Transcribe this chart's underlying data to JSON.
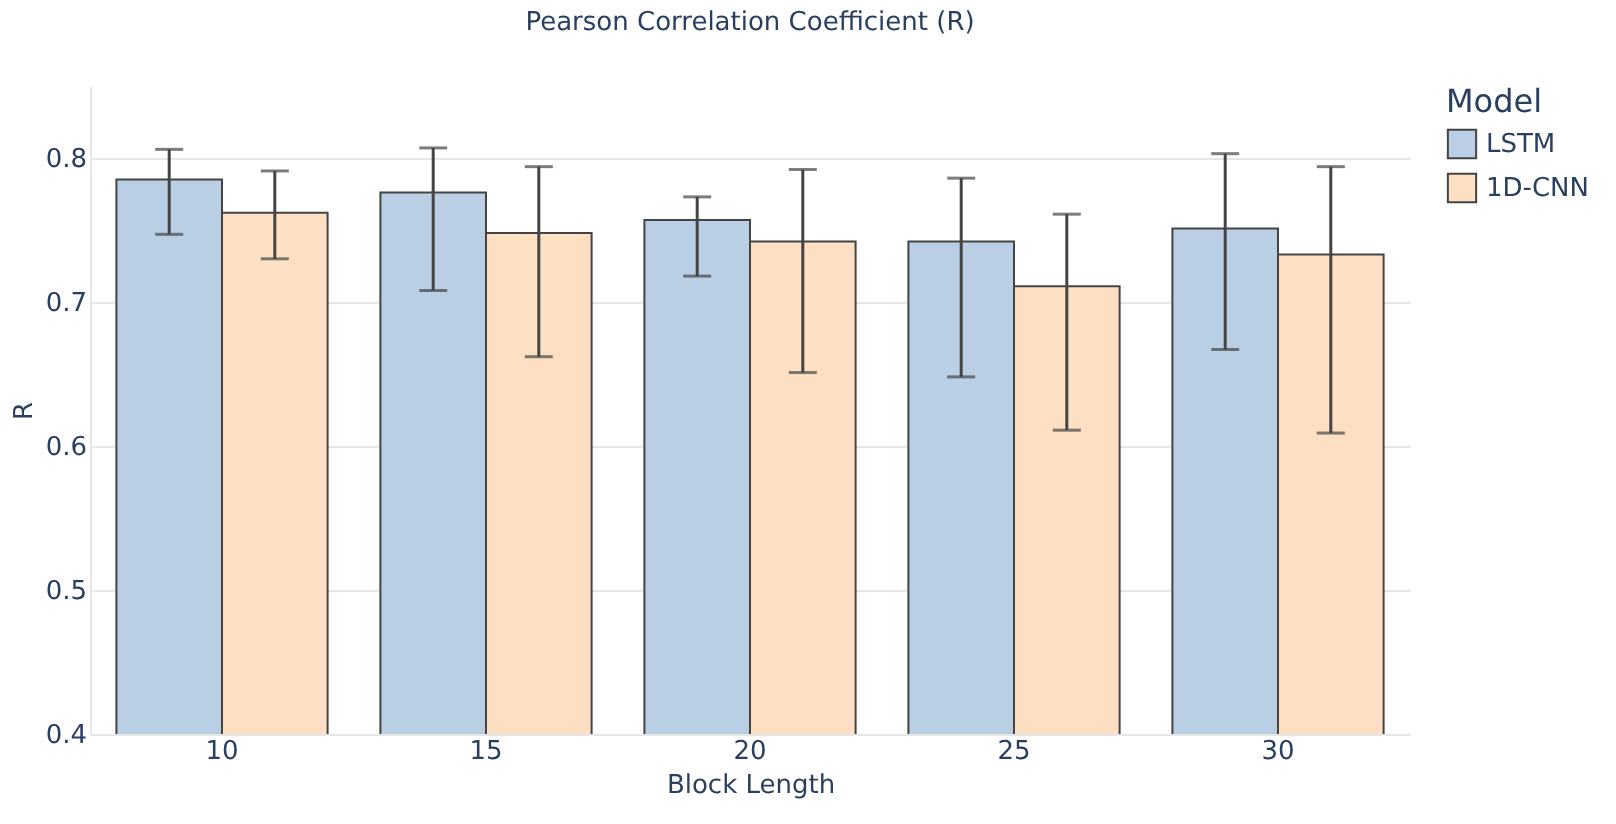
{
  "chart_data": {
    "type": "bar",
    "title": "Pearson Correlation Coefficient (R)",
    "xlabel": "Block Length",
    "ylabel": "R",
    "legend_title": "Model",
    "categories": [
      "10",
      "15",
      "20",
      "25",
      "30"
    ],
    "series": [
      {
        "name": "LSTM",
        "color": "#bacee4",
        "values": [
          0.785,
          0.776,
          0.757,
          0.742,
          0.751
        ],
        "errors": [
          [
            0.747,
            0.806
          ],
          [
            0.708,
            0.807
          ],
          [
            0.718,
            0.773
          ],
          [
            0.648,
            0.786
          ],
          [
            0.667,
            0.803
          ]
        ]
      },
      {
        "name": "1D-CNN",
        "color": "#fddfc3",
        "values": [
          0.762,
          0.748,
          0.742,
          0.711,
          0.733
        ],
        "errors": [
          [
            0.73,
            0.791
          ],
          [
            0.662,
            0.794
          ],
          [
            0.651,
            0.792
          ],
          [
            0.611,
            0.761
          ],
          [
            0.609,
            0.794
          ]
        ]
      }
    ],
    "ylim": [
      0.4,
      0.85
    ],
    "yticks": [
      0.4,
      0.5,
      0.6,
      0.7,
      0.8
    ],
    "grid": "y",
    "legend": "top right"
  }
}
